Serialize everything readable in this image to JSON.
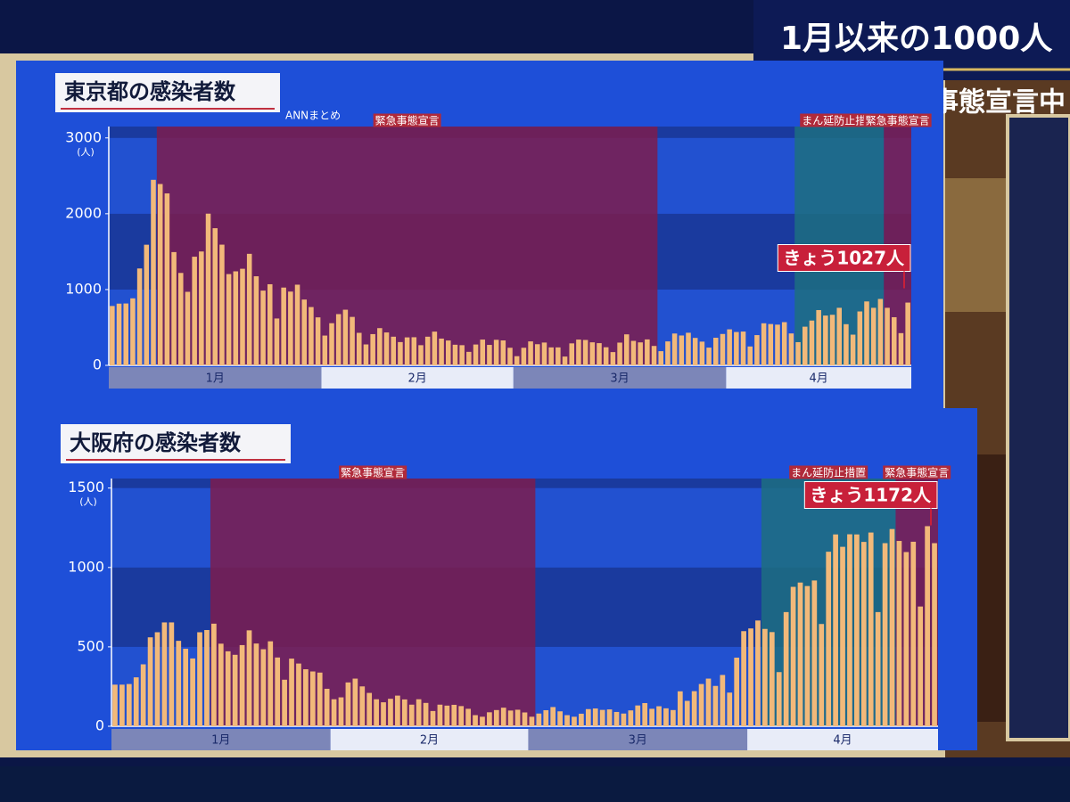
{
  "header": {
    "headline": "1月以来の1000人",
    "subhead": "緊急事態宣言中"
  },
  "chart_data": [
    {
      "type": "bar",
      "title": "東京都の感染者数",
      "source": "ANNまとめ",
      "unit": "(人)",
      "color": "#f2b97a",
      "callout": "きょう1027人",
      "ylim": [
        0,
        3150
      ],
      "yticks": [
        0,
        1000,
        2000,
        3000
      ],
      "grid": true,
      "periods": [
        {
          "label": "緊急事態宣言",
          "from": 7,
          "to": 79,
          "color": "#7d1c4e"
        },
        {
          "label": "まん延防止措置",
          "from": 100,
          "to": 112,
          "color": "#1d6e80"
        },
        {
          "label": "緊急事態宣言",
          "from": 113,
          "to": 116,
          "color": "#7d1c4e"
        }
      ],
      "categories": [
        "1月",
        null,
        null,
        null,
        null,
        null,
        null,
        null,
        null,
        null,
        null,
        null,
        null,
        null,
        null,
        null,
        null,
        null,
        null,
        null,
        null,
        null,
        null,
        null,
        null,
        null,
        null,
        null,
        null,
        null,
        null,
        "2月",
        null,
        null,
        null,
        null,
        null,
        null,
        null,
        null,
        null,
        null,
        null,
        null,
        null,
        null,
        null,
        null,
        null,
        null,
        null,
        null,
        null,
        null,
        null,
        null,
        null,
        null,
        null,
        "3月",
        null,
        null,
        null,
        null,
        null,
        null,
        null,
        null,
        null,
        null,
        null,
        null,
        null,
        null,
        null,
        null,
        null,
        null,
        null,
        null,
        null,
        null,
        null,
        null,
        null,
        null,
        null,
        null,
        null,
        null,
        "4月",
        null,
        null,
        null,
        null,
        null,
        null,
        null,
        null,
        null,
        null,
        null,
        null,
        null,
        null,
        null,
        null,
        null,
        null,
        null,
        null,
        null,
        null,
        null,
        null,
        null,
        null
      ],
      "values": [
        783,
        814,
        816,
        884,
        1278,
        1591,
        2447,
        2392,
        2268,
        1494,
        1219,
        970,
        1433,
        1502,
        2001,
        1809,
        1592,
        1204,
        1240,
        1274,
        1471,
        1175,
        986,
        1070,
        618,
        1026,
        973,
        1064,
        868,
        769,
        633,
        393,
        556,
        676,
        734,
        639,
        429,
        276,
        412,
        491,
        434,
        378,
        307,
        369,
        371,
        266,
        378,
        445,
        353,
        328,
        272,
        266,
        178,
        275,
        340,
        270,
        337,
        329,
        232,
        121,
        232,
        316,
        279,
        301,
        237,
        237,
        116,
        290,
        340,
        335,
        304,
        293,
        239,
        175,
        300,
        409,
        323,
        303,
        342,
        256,
        187,
        316,
        420,
        394,
        430,
        362,
        313,
        234,
        364,
        414,
        475,
        440,
        446,
        249,
        399,
        555,
        545,
        537,
        570,
        421,
        306,
        510,
        591,
        729,
        657,
        667,
        759,
        543,
        405,
        711,
        843,
        759,
        876,
        759,
        635,
        425,
        828
      ]
    },
    {
      "type": "bar",
      "title": "大阪府の感染者数",
      "unit": "(人)",
      "color": "#f2b97a",
      "callout": "きょう1172人",
      "ylim": [
        0,
        1560
      ],
      "yticks": [
        0,
        500,
        1000,
        1500
      ],
      "grid": true,
      "periods": [
        {
          "label": "緊急事態宣言",
          "from": 14,
          "to": 59,
          "color": "#7d1c4e"
        },
        {
          "label": "まん延防止措置",
          "from": 92,
          "to": 110,
          "color": "#1d6e80"
        },
        {
          "label": "緊急事態宣言",
          "from": 111,
          "to": 116,
          "color": "#7d1c4e"
        }
      ],
      "categories": [
        "1月",
        null,
        null,
        null,
        null,
        null,
        null,
        null,
        null,
        null,
        null,
        null,
        null,
        null,
        null,
        null,
        null,
        null,
        null,
        null,
        null,
        null,
        null,
        null,
        null,
        null,
        null,
        null,
        null,
        null,
        null,
        "2月",
        null,
        null,
        null,
        null,
        null,
        null,
        null,
        null,
        null,
        null,
        null,
        null,
        null,
        null,
        null,
        null,
        null,
        null,
        null,
        null,
        null,
        null,
        null,
        null,
        null,
        null,
        null,
        "3月",
        null,
        null,
        null,
        null,
        null,
        null,
        null,
        null,
        null,
        null,
        null,
        null,
        null,
        null,
        null,
        null,
        null,
        null,
        null,
        null,
        null,
        null,
        null,
        null,
        null,
        null,
        null,
        null,
        null,
        null,
        "4月",
        null,
        null,
        null,
        null,
        null,
        null,
        null,
        null,
        null,
        null,
        null,
        null,
        null,
        null,
        null,
        null,
        null,
        null,
        null,
        null,
        null,
        null,
        null,
        null,
        null,
        null
      ],
      "values": [
        262,
        262,
        266,
        308,
        390,
        560,
        592,
        654,
        654,
        538,
        488,
        427,
        592,
        606,
        646,
        520,
        472,
        450,
        511,
        604,
        521,
        485,
        535,
        433,
        293,
        426,
        395,
        359,
        345,
        338,
        236,
        170,
        182,
        276,
        300,
        251,
        210,
        170,
        151,
        173,
        193,
        169,
        136,
        170,
        147,
        96,
        136,
        130,
        135,
        127,
        110,
        70,
        60,
        88,
        102,
        117,
        99,
        104,
        87,
        60,
        80,
        101,
        121,
        94,
        70,
        60,
        79,
        108,
        112,
        103,
        106,
        90,
        80,
        100,
        131,
        146,
        110,
        126,
        113,
        102,
        220,
        160,
        221,
        266,
        300,
        254,
        323,
        212,
        432,
        599,
        616,
        666,
        613,
        593,
        341,
        719,
        878,
        905,
        883,
        918,
        644,
        1099,
        1208,
        1130,
        1209,
        1208,
        1161,
        1220,
        719,
        1153,
        1242,
        1167,
        1097,
        1162,
        754,
        1260,
        1153
      ]
    }
  ]
}
